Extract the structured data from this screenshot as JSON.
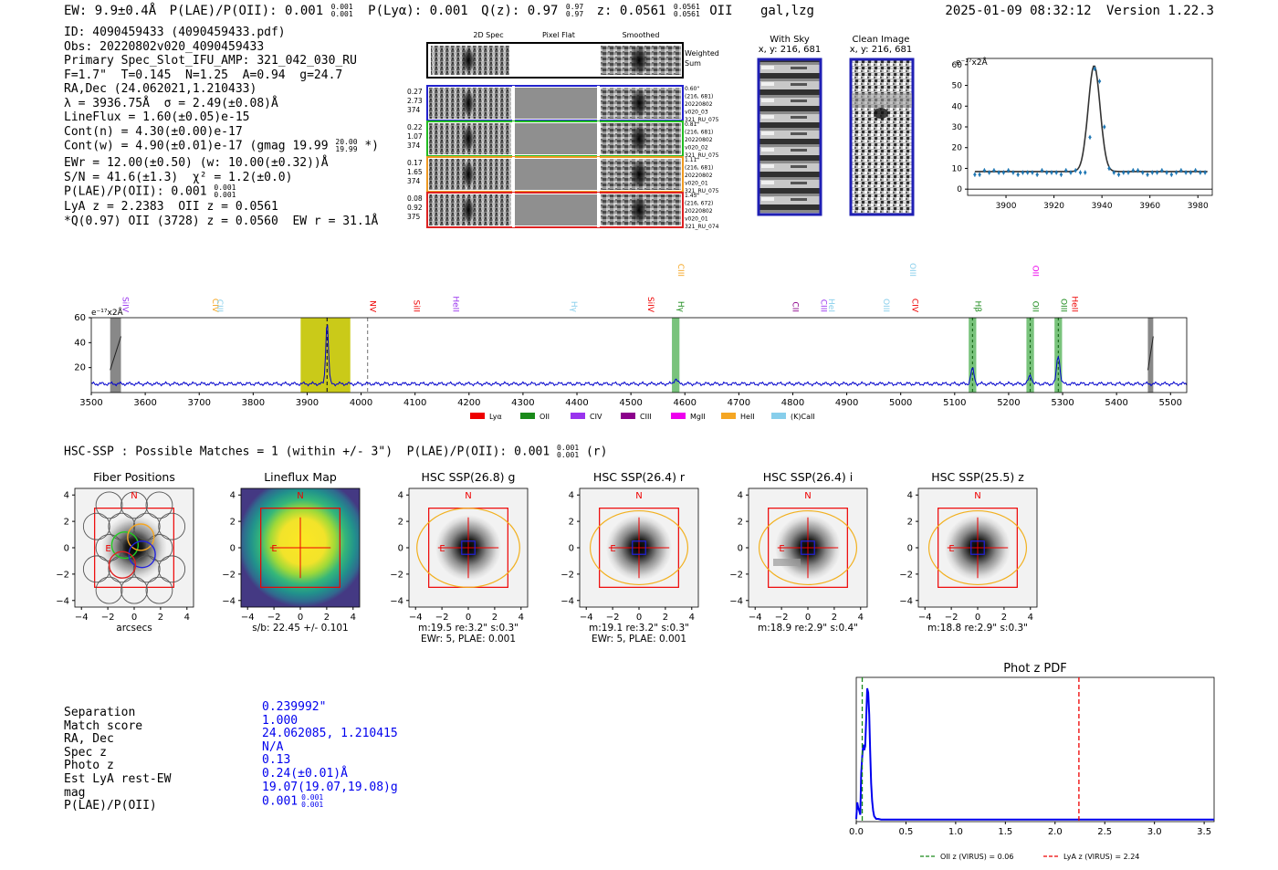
{
  "header": {
    "ew": "EW: 9.9±0.4Å",
    "plae": "P(LAE)/P(OII): 0.001",
    "plae_hi": "0.001",
    "plae_lo": "0.001",
    "plya": "P(Lyα): 0.001",
    "qz": "Q(z): 0.97",
    "qz_hi": "0.97",
    "qz_lo": "0.97",
    "z": "z: 0.0561",
    "z_hi": "0.0561",
    "z_lo": "0.0561",
    "line": "OII",
    "flags": "gal,lzg",
    "datetime": "2025-01-09 08:32:12",
    "version": "Version 1.22.3"
  },
  "info": {
    "id": "ID: 4090459433 (4090459433.pdf)",
    "obs": "Obs: 20220802v020_4090459433",
    "slot": "Primary Spec_Slot_IFU_AMP: 321_042_030_RU",
    "params": "F=1.7\"  T=0.145  N=1.25  A=0.94  g=24.7",
    "radec": "RA,Dec (24.062021,1.210433)",
    "lambda": "λ = 3936.75Å  σ = 2.49(±0.08)Å",
    "lineflux": "LineFlux = 1.60(±0.05)e-15",
    "contn": "Cont(n) = 4.30(±0.00)e-17",
    "contw": "Cont(w) = 4.90(±0.01)e-17 (gmag 19.99",
    "contw_hi": "20.00",
    "contw_lo": "19.99",
    "contw_end": "*)",
    "ewr": "EWr = 12.00(±0.50) (w: 10.00(±0.32))Å",
    "sn": "S/N = 41.6(±1.3)  χ² = 1.2(±0.0)",
    "plae": "P(LAE)/P(OII): 0.001",
    "plae_hi": "0.001",
    "plae_lo": "0.001",
    "lya": "LyA z = 2.2383  OII z = 0.0561",
    "q": "*Q(0.97) OII (3728) z = 0.0560  EW r = 31.1Å"
  },
  "cutouts": {
    "col_2d": "2D Spec",
    "col_flat": "Pixel Flat",
    "col_smooth": "Smoothed",
    "weighted": "Weighted Sum",
    "rows": [
      {
        "left": [
          "0.27",
          "2.73",
          "374"
        ],
        "right": [
          "0.60\"",
          "(216, 681)",
          "20220802",
          "v020_03",
          "321_RU_075"
        ],
        "color": "#2222cc"
      },
      {
        "left": [
          "0.22",
          "1.07",
          "374"
        ],
        "right": [
          "0.81\"",
          "(216, 681)",
          "20220802",
          "v020_02",
          "321_RU_075"
        ],
        "color": "#22bb22"
      },
      {
        "left": [
          "0.17",
          "1.65",
          "374"
        ],
        "right": [
          "1.11\"",
          "(216, 681)",
          "20220802",
          "v020_01",
          "321_RU_075"
        ],
        "color": "#ee9922"
      },
      {
        "left": [
          "0.08",
          "0.92",
          "375"
        ],
        "right": [
          "1.45\"",
          "(216, 672)",
          "20220802",
          "v020_01",
          "321_RU_074"
        ],
        "color": "#dd2222"
      }
    ]
  },
  "sky": {
    "with_sky_title": "With Sky",
    "with_sky_coord": "x, y: 216, 681",
    "clean_title": "Clean Image",
    "clean_coord": "x, y: 216, 681"
  },
  "line_fit": {
    "ylabel": "e⁻¹⁷x2Å",
    "chart_data": {
      "type": "line",
      "title": "",
      "xlim": [
        3884,
        3986
      ],
      "ylim": [
        -3,
        63
      ],
      "xticks": [
        3900,
        3920,
        3940,
        3960,
        3980
      ],
      "yticks": [
        0,
        10,
        20,
        30,
        40,
        50,
        60
      ],
      "model": {
        "center": 3936.75,
        "sigma": 2.49,
        "continuum": 8.5,
        "amplitude": 51
      },
      "data_x": [
        3887,
        3889,
        3891,
        3893,
        3895,
        3897,
        3899,
        3901,
        3903,
        3905,
        3907,
        3909,
        3911,
        3913,
        3915,
        3917,
        3919,
        3921,
        3923,
        3925,
        3927,
        3929,
        3931,
        3933,
        3935,
        3937,
        3939,
        3941,
        3943,
        3945,
        3947,
        3949,
        3951,
        3953,
        3955,
        3957,
        3959,
        3961,
        3963,
        3965,
        3967,
        3969,
        3971,
        3973,
        3975,
        3977,
        3979,
        3981,
        3983
      ],
      "data_y": [
        7,
        7,
        9,
        8,
        9,
        8,
        8,
        9,
        8,
        7,
        8,
        8,
        8,
        7,
        9,
        8,
        8,
        8,
        7,
        9,
        8,
        9,
        8,
        8,
        25,
        58,
        52,
        30,
        10,
        8,
        7,
        8,
        8,
        9,
        9,
        8,
        7,
        8,
        8,
        9,
        8,
        7,
        8,
        9,
        8,
        8,
        9,
        8,
        8
      ]
    }
  },
  "spectrum": {
    "ylabel": "e⁻¹⁷x2Å",
    "chart_data": {
      "type": "line",
      "xlim": [
        3500,
        5530
      ],
      "ylim": [
        0,
        60
      ],
      "xticks": [
        3500,
        3600,
        3700,
        3800,
        3900,
        4000,
        4100,
        4200,
        4300,
        4400,
        4500,
        4600,
        4700,
        4800,
        4900,
        5000,
        5100,
        5200,
        5300,
        5400,
        5500
      ],
      "yticks": [
        20,
        40,
        60
      ],
      "continuum": 7,
      "peaks": [
        {
          "x": 3937,
          "h": 50,
          "w": 2.5
        },
        {
          "x": 4583,
          "h": 4,
          "w": 3
        },
        {
          "x": 5133,
          "h": 12,
          "w": 3
        },
        {
          "x": 5240,
          "h": 7,
          "w": 3
        },
        {
          "x": 5292,
          "h": 23,
          "w": 3
        }
      ],
      "yellow_band": [
        3888,
        3980
      ],
      "gray_bands": [
        [
          3535,
          3555
        ],
        [
          5458,
          5468
        ]
      ],
      "green_bands": [
        [
          4576,
          4590
        ],
        [
          5126,
          5140
        ],
        [
          5233,
          5247
        ],
        [
          5285,
          5299
        ]
      ],
      "dashed_lines": [
        {
          "x": 3937,
          "color": "#222222"
        },
        {
          "x": 4012,
          "color": "#888888"
        }
      ],
      "green_dashes": [
        5133,
        5240,
        5292
      ],
      "line_labels": [
        {
          "text": "SiIV",
          "x": 3553,
          "row": 0,
          "color": "#9933ee"
        },
        {
          "text": "CIV",
          "x": 3720,
          "row": 0,
          "color": "#f5a623"
        },
        {
          "text": "CIII",
          "x": 3728,
          "row": 0,
          "color": "#87ceeb"
        },
        {
          "text": "NV",
          "x": 4012,
          "row": 0,
          "color": "#ee0000"
        },
        {
          "text": "SiII",
          "x": 4093,
          "row": 0,
          "color": "#ee0000"
        },
        {
          "text": "HeII",
          "x": 4166,
          "row": 0,
          "color": "#9933ee"
        },
        {
          "text": "Hγ",
          "x": 4385,
          "row": 0,
          "color": "#87ceeb"
        },
        {
          "text": "SiIV",
          "x": 4527,
          "row": 0,
          "color": "#ee0000"
        },
        {
          "text": "Hγ",
          "x": 4583,
          "row": 0,
          "color": "#1a8a1a"
        },
        {
          "text": "CIII",
          "x": 4583,
          "row": 1,
          "color": "#f5a623"
        },
        {
          "text": "CII",
          "x": 4795,
          "row": 0,
          "color": "#8b008b"
        },
        {
          "text": "CIII",
          "x": 4847,
          "row": 0,
          "color": "#9933ee"
        },
        {
          "text": "HeI",
          "x": 4862,
          "row": 0,
          "color": "#87ceeb"
        },
        {
          "text": "OIII",
          "x": 4963,
          "row": 0,
          "color": "#87ceeb"
        },
        {
          "text": "OIII",
          "x": 5012,
          "row": 1,
          "color": "#87ceeb"
        },
        {
          "text": "CIV",
          "x": 5017,
          "row": 0,
          "color": "#ee0000"
        },
        {
          "text": "Hβ",
          "x": 5133,
          "row": 0,
          "color": "#1a8a1a"
        },
        {
          "text": "OII",
          "x": 5240,
          "row": 0,
          "color": "#1a8a1a"
        },
        {
          "text": "OII",
          "x": 5240,
          "row": 1,
          "color": "#ee00ee"
        },
        {
          "text": "OIII",
          "x": 5292,
          "row": 0,
          "color": "#1a8a1a"
        },
        {
          "text": "HeII",
          "x": 5313,
          "row": 0,
          "color": "#ee0000"
        }
      ],
      "legend": [
        {
          "label": "Lyα",
          "color": "#ee0000"
        },
        {
          "label": "OII",
          "color": "#1a8a1a"
        },
        {
          "label": "CIV",
          "color": "#9933ee"
        },
        {
          "label": "CIII",
          "color": "#8b008b"
        },
        {
          "label": "MgII",
          "color": "#ee00ee"
        },
        {
          "label": "HeII",
          "color": "#f5a623"
        },
        {
          "label": "(K)CaII",
          "color": "#87ceeb"
        }
      ]
    }
  },
  "hsc": {
    "summary": "HSC-SSP : Possible Matches = 1 (within +/- 3\")  P(LAE)/P(OII): 0.001",
    "summary_hi": "0.001",
    "summary_lo": "0.001",
    "summary_end": "(r)",
    "panels": [
      {
        "title": "Fiber Positions",
        "under1": "arcsecs",
        "under2": ""
      },
      {
        "title": "Lineflux Map",
        "under1": "s/b: 22.45 +/- 0.101",
        "under2": ""
      },
      {
        "title": "HSC SSP(26.8) g",
        "under1": "m:19.5  re:3.2\"  s:0.3\"",
        "under2": "EWr: 5, PLAE: 0.001"
      },
      {
        "title": "HSC SSP(26.4) r",
        "under1": "m:19.1  re:3.2\"  s:0.3\"",
        "under2": "EWr: 5, PLAE: 0.001"
      },
      {
        "title": "HSC SSP(26.4) i",
        "under1": "m:18.9  re:2.9\"  s:0.4\"",
        "under2": ""
      },
      {
        "title": "HSC SSP(25.5) z",
        "under1": "m:18.8  re:2.9\"  s:0.3\"",
        "under2": ""
      }
    ],
    "axis_ticks": [
      "4",
      "2",
      "0",
      "−2",
      "−4"
    ],
    "x_ticks": [
      "−4",
      "−2",
      "0",
      "2",
      "4"
    ],
    "compass_n": "N",
    "compass_e": "E"
  },
  "match": {
    "labels": [
      "Separation",
      "Match score",
      "RA, Dec",
      "Spec z",
      "Photo z",
      "Est LyA rest-EW",
      "mag",
      "P(LAE)/P(OII)"
    ],
    "values": [
      "0.239992\"",
      "1.000",
      "24.062085, 1.210415",
      "N/A",
      "0.13",
      "0.24(±0.01)Å",
      "19.07(19.07,19.08)g",
      "0.001"
    ],
    "plae_hi": "0.001",
    "plae_lo": "0.001"
  },
  "photoz": {
    "chart_data": {
      "type": "line",
      "title": "Phot z PDF",
      "xlim": [
        0,
        3.6
      ],
      "ylim": [
        0,
        1.05
      ],
      "xticks": [
        0.0,
        0.5,
        1.0,
        1.5,
        2.0,
        2.5,
        3.0,
        3.5
      ],
      "pdf_x": [
        0.0,
        0.01,
        0.02,
        0.03,
        0.04,
        0.05,
        0.06,
        0.07,
        0.08,
        0.09,
        0.1,
        0.11,
        0.12,
        0.13,
        0.14,
        0.15,
        0.16,
        0.17,
        0.18,
        0.19,
        0.2,
        0.22,
        0.25,
        0.3,
        0.4,
        0.6,
        1.0,
        2.0,
        3.6
      ],
      "pdf_y": [
        0.02,
        0.14,
        0.1,
        0.08,
        0.05,
        0.35,
        0.47,
        0.56,
        0.52,
        0.55,
        0.75,
        0.97,
        0.94,
        0.78,
        0.52,
        0.28,
        0.15,
        0.08,
        0.04,
        0.03,
        0.02,
        0.02,
        0.015,
        0.015,
        0.015,
        0.015,
        0.015,
        0.015,
        0.015
      ],
      "oii_z": 0.06,
      "lya_z": 2.24,
      "legend": [
        {
          "label": "OII z (VIRUS) = 0.06",
          "color": "#1a8a1a"
        },
        {
          "label": "LyA z (VIRUS) = 2.24",
          "color": "#ee0000"
        }
      ]
    }
  }
}
